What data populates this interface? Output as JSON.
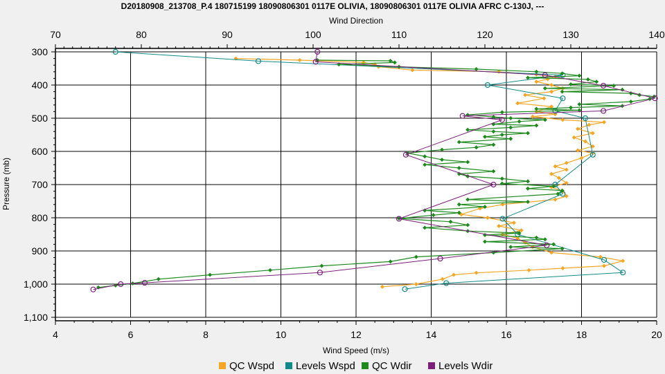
{
  "chart_data": {
    "type": "line",
    "title": "D20180908_213708_P.4 180715199 18090806301 0117E OLIVIA, 18090806301 0117E OLIVIA AFRC C-130J, ---",
    "top_axis_label": "Wind Direction",
    "xlabel": "Wind Speed (m/s)",
    "ylabel": "Pressure (mb)",
    "xlim": [
      4,
      20
    ],
    "top_xlim": [
      70,
      140
    ],
    "ylim": [
      300,
      1100
    ],
    "y_inverted": true,
    "grid": true,
    "legend_position": "bottom",
    "x_ticks": [
      "4",
      "6",
      "8",
      "10",
      "12",
      "14",
      "16",
      "18",
      "20"
    ],
    "top_ticks": [
      "70",
      "80",
      "90",
      "100",
      "110",
      "120",
      "130",
      "140"
    ],
    "y_ticks": [
      "300",
      "400",
      "500",
      "600",
      "700",
      "800",
      "900",
      "1,000",
      "1,100"
    ],
    "series": [
      {
        "name": "QC Wspd",
        "color": "#f5a623",
        "axis": "bottom",
        "points": [
          [
            8.8,
            320
          ],
          [
            10.5,
            325
          ],
          [
            12.2,
            332
          ],
          [
            12.5,
            338
          ],
          [
            12.6,
            345
          ],
          [
            13.5,
            355
          ],
          [
            15.8,
            360
          ],
          [
            16.8,
            368
          ],
          [
            17.3,
            375
          ],
          [
            17.1,
            382
          ],
          [
            16.8,
            390
          ],
          [
            17.2,
            400
          ],
          [
            17.5,
            410
          ],
          [
            17.2,
            420
          ],
          [
            16.5,
            430
          ],
          [
            17.0,
            440
          ],
          [
            16.3,
            455
          ],
          [
            17.2,
            465
          ],
          [
            16.8,
            480
          ],
          [
            17.3,
            488
          ],
          [
            16.7,
            495
          ],
          [
            17.5,
            505
          ],
          [
            18.6,
            512
          ],
          [
            18.2,
            520
          ],
          [
            17.9,
            532
          ],
          [
            18.3,
            545
          ],
          [
            17.8,
            558
          ],
          [
            18.1,
            570
          ],
          [
            18.3,
            585
          ],
          [
            17.9,
            597
          ],
          [
            18.3,
            605
          ],
          [
            18.0,
            620
          ],
          [
            17.6,
            635
          ],
          [
            17.3,
            645
          ],
          [
            17.6,
            655
          ],
          [
            17.2,
            668
          ],
          [
            17.4,
            680
          ],
          [
            17.6,
            695
          ],
          [
            17.2,
            708
          ],
          [
            17.5,
            720
          ],
          [
            17.6,
            735
          ],
          [
            17.3,
            745
          ],
          [
            15.9,
            760
          ],
          [
            15.3,
            772
          ],
          [
            14.8,
            790
          ],
          [
            15.5,
            800
          ],
          [
            16.2,
            815
          ],
          [
            15.8,
            825
          ],
          [
            16.4,
            838
          ],
          [
            15.9,
            850
          ],
          [
            16.3,
            862
          ],
          [
            16.5,
            875
          ],
          [
            16.7,
            888
          ],
          [
            17.2,
            905
          ],
          [
            18.5,
            918
          ],
          [
            19.1,
            930
          ],
          [
            18.6,
            945
          ],
          [
            17.5,
            952
          ],
          [
            16.6,
            958
          ],
          [
            15.2,
            966
          ],
          [
            14.6,
            972
          ],
          [
            14.3,
            985
          ],
          [
            13.6,
            1000
          ],
          [
            12.7,
            1008
          ]
        ]
      },
      {
        "name": "Levels Wspd",
        "color": "#138a8a",
        "axis": "bottom",
        "points": [
          [
            5.6,
            300
          ],
          [
            9.4,
            328
          ],
          [
            17.5,
            370
          ],
          [
            15.5,
            400
          ],
          [
            17.5,
            440
          ],
          [
            17.3,
            478
          ],
          [
            18.1,
            500
          ],
          [
            18.3,
            610
          ],
          [
            17.3,
            700
          ],
          [
            17.5,
            728
          ],
          [
            15.9,
            803
          ],
          [
            16.3,
            850
          ],
          [
            18.6,
            927
          ],
          [
            19.1,
            965
          ],
          [
            14.4,
            997
          ],
          [
            13.3,
            1015
          ]
        ]
      },
      {
        "name": "QC Wdir",
        "color": "#1e8a1e",
        "axis": "top",
        "points": [
          [
            100.5,
            325
          ],
          [
            109.0,
            327
          ],
          [
            109.5,
            332
          ],
          [
            103,
            338
          ],
          [
            110,
            345
          ],
          [
            119,
            352
          ],
          [
            126,
            360
          ],
          [
            129,
            365
          ],
          [
            131,
            372
          ],
          [
            125,
            378
          ],
          [
            132,
            383
          ],
          [
            133,
            390
          ],
          [
            130,
            398
          ],
          [
            135,
            402
          ],
          [
            127,
            410
          ],
          [
            136,
            414
          ],
          [
            129,
            420
          ],
          [
            137,
            425
          ],
          [
            138,
            430
          ],
          [
            139.7,
            435
          ],
          [
            139.2,
            442
          ],
          [
            137,
            450
          ],
          [
            131,
            458
          ],
          [
            136,
            463
          ],
          [
            130,
            468
          ],
          [
            126,
            472
          ],
          [
            131,
            476
          ],
          [
            122,
            482
          ],
          [
            118,
            490
          ],
          [
            121,
            496
          ],
          [
            123,
            500
          ],
          [
            127,
            505
          ],
          [
            124,
            510
          ],
          [
            121,
            518
          ],
          [
            126,
            522
          ],
          [
            123,
            528
          ],
          [
            118,
            535
          ],
          [
            121,
            540
          ],
          [
            125,
            545
          ],
          [
            122,
            550
          ],
          [
            120,
            556
          ],
          [
            123,
            562
          ],
          [
            117,
            572
          ],
          [
            121,
            580
          ],
          [
            119,
            588
          ],
          [
            115,
            595
          ],
          [
            111,
            605
          ],
          [
            113,
            615
          ],
          [
            115,
            625
          ],
          [
            118,
            632
          ],
          [
            113,
            640
          ],
          [
            117,
            650
          ],
          [
            121,
            660
          ],
          [
            117,
            668
          ],
          [
            118,
            675
          ],
          [
            122,
            682
          ],
          [
            125,
            690
          ],
          [
            122,
            697
          ],
          [
            128,
            705
          ],
          [
            125,
            712
          ],
          [
            129,
            718
          ],
          [
            128.5,
            728
          ],
          [
            118,
            745
          ],
          [
            125,
            752
          ],
          [
            117,
            760
          ],
          [
            120,
            767
          ],
          [
            113,
            778
          ],
          [
            117,
            785
          ],
          [
            114,
            792
          ],
          [
            110,
            802
          ],
          [
            116,
            812
          ],
          [
            118,
            822
          ],
          [
            113,
            830
          ],
          [
            118,
            840
          ],
          [
            124,
            846
          ],
          [
            120,
            852
          ],
          [
            126,
            860
          ],
          [
            127,
            865
          ],
          [
            120,
            872
          ],
          [
            128,
            880
          ],
          [
            123,
            888
          ],
          [
            129,
            893
          ],
          [
            121,
            905
          ],
          [
            112,
            918
          ],
          [
            109,
            932
          ],
          [
            101,
            945
          ],
          [
            95,
            958
          ],
          [
            88,
            972
          ],
          [
            82,
            985
          ],
          [
            79,
            998
          ],
          [
            77,
            1004
          ],
          [
            75,
            1010
          ]
        ]
      },
      {
        "name": "Levels Wdir",
        "color": "#7b1f7b",
        "axis": "top",
        "points": [
          [
            100.5,
            300
          ],
          [
            100.3,
            330
          ],
          [
            127,
            370
          ],
          [
            133.8,
            402
          ],
          [
            139.8,
            440
          ],
          [
            133.8,
            478
          ],
          [
            117.4,
            493
          ],
          [
            122,
            505
          ],
          [
            110.8,
            610
          ],
          [
            121,
            700
          ],
          [
            110,
            803
          ],
          [
            127.2,
            883
          ],
          [
            114.8,
            923
          ],
          [
            100.8,
            965
          ],
          [
            80.4,
            996
          ],
          [
            77.6,
            1000
          ],
          [
            74.4,
            1016
          ]
        ]
      }
    ]
  },
  "legend": [
    {
      "label": "QC Wspd",
      "color": "#f5a623"
    },
    {
      "label": "Levels Wspd",
      "color": "#138a8a"
    },
    {
      "label": "QC Wdir",
      "color": "#1e8a1e"
    },
    {
      "label": "Levels Wdir",
      "color": "#7b1f7b"
    }
  ]
}
